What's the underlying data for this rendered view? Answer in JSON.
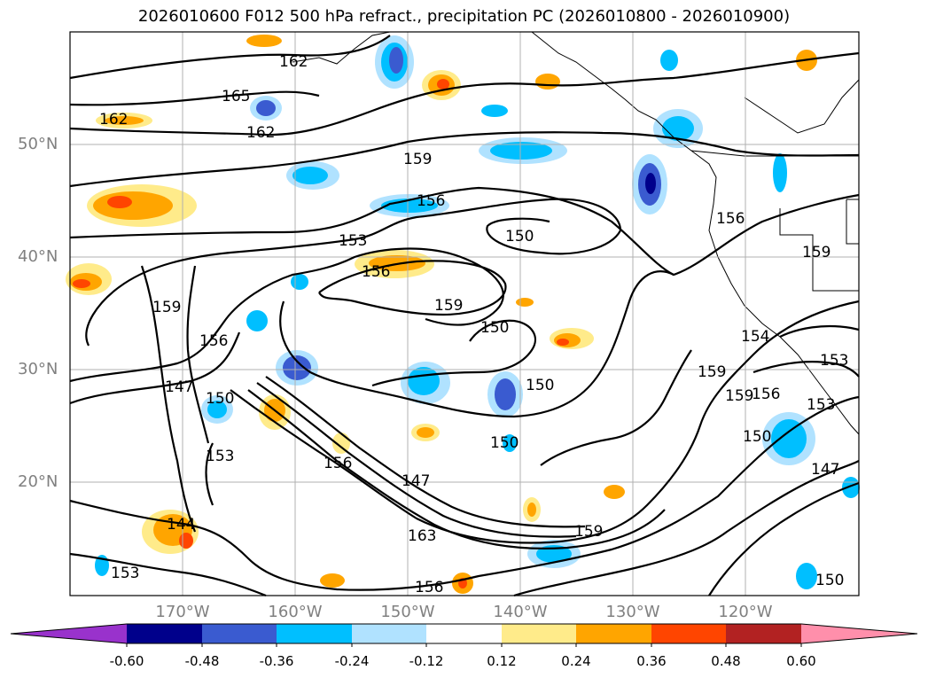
{
  "title": "2026010600 F012 500 hPa refract., precipitation PC (2026010800 - 2026010900)",
  "lat_labels": [
    "50°N",
    "40°N",
    "30°N",
    "20°N"
  ],
  "lon_labels": [
    "170°W",
    "160°W",
    "150°W",
    "140°W",
    "130°W",
    "120°W"
  ],
  "contour_labels": [
    "162",
    "165",
    "162",
    "162",
    "159",
    "156",
    "153",
    "150",
    "156",
    "159",
    "156",
    "159",
    "147",
    "150",
    "153",
    "144",
    "153",
    "150",
    "150",
    "150",
    "147",
    "156",
    "163",
    "159",
    "159",
    "156",
    "159",
    "153",
    "153",
    "150",
    "147",
    "150",
    "156",
    "159",
    "154"
  ],
  "colorbar": {
    "ticks": [
      "-0.60",
      "-0.48",
      "-0.36",
      "-0.24",
      "-0.12",
      "0.12",
      "0.24",
      "0.36",
      "0.48",
      "0.60"
    ],
    "colors": [
      "#9932cc",
      "#00008b",
      "#3a5bd0",
      "#00bfff",
      "#b0e2ff",
      "#ffffff",
      "#ffeb8a",
      "#ffa500",
      "#ff4500",
      "#b22222",
      "#ff8fab"
    ]
  }
}
